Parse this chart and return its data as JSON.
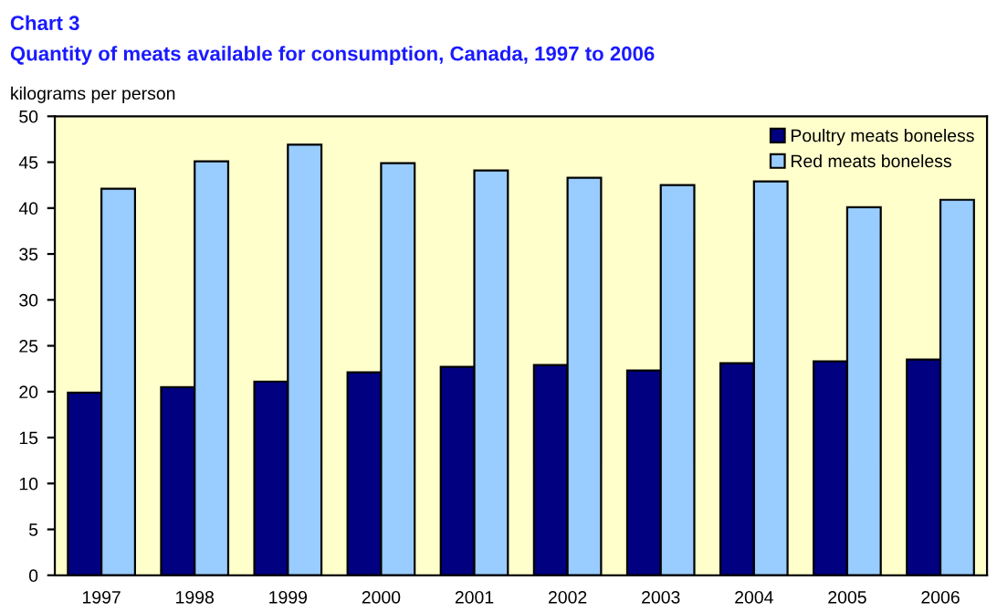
{
  "chart_data": {
    "type": "bar",
    "title": "Chart 3",
    "subtitle": "Quantity of meats available for consumption, Canada, 1997 to 2006",
    "ylabel": "kilograms per person",
    "categories": [
      "1997",
      "1998",
      "1999",
      "2000",
      "2001",
      "2002",
      "2003",
      "2004",
      "2005",
      "2006"
    ],
    "series": [
      {
        "name": "Poultry meats boneless",
        "color": "#000080",
        "values": [
          19.9,
          20.5,
          21.1,
          22.1,
          22.7,
          22.9,
          22.3,
          23.1,
          23.3,
          23.5
        ]
      },
      {
        "name": "Red meats boneless",
        "color": "#99ccff",
        "values": [
          42.1,
          45.1,
          46.9,
          44.9,
          44.1,
          43.3,
          42.5,
          42.9,
          40.1,
          40.9
        ]
      }
    ],
    "ylim": [
      0,
      50
    ],
    "yticks": [
      0,
      5,
      10,
      15,
      20,
      25,
      30,
      35,
      40,
      45,
      50
    ],
    "grid": false,
    "legend": "top right"
  }
}
